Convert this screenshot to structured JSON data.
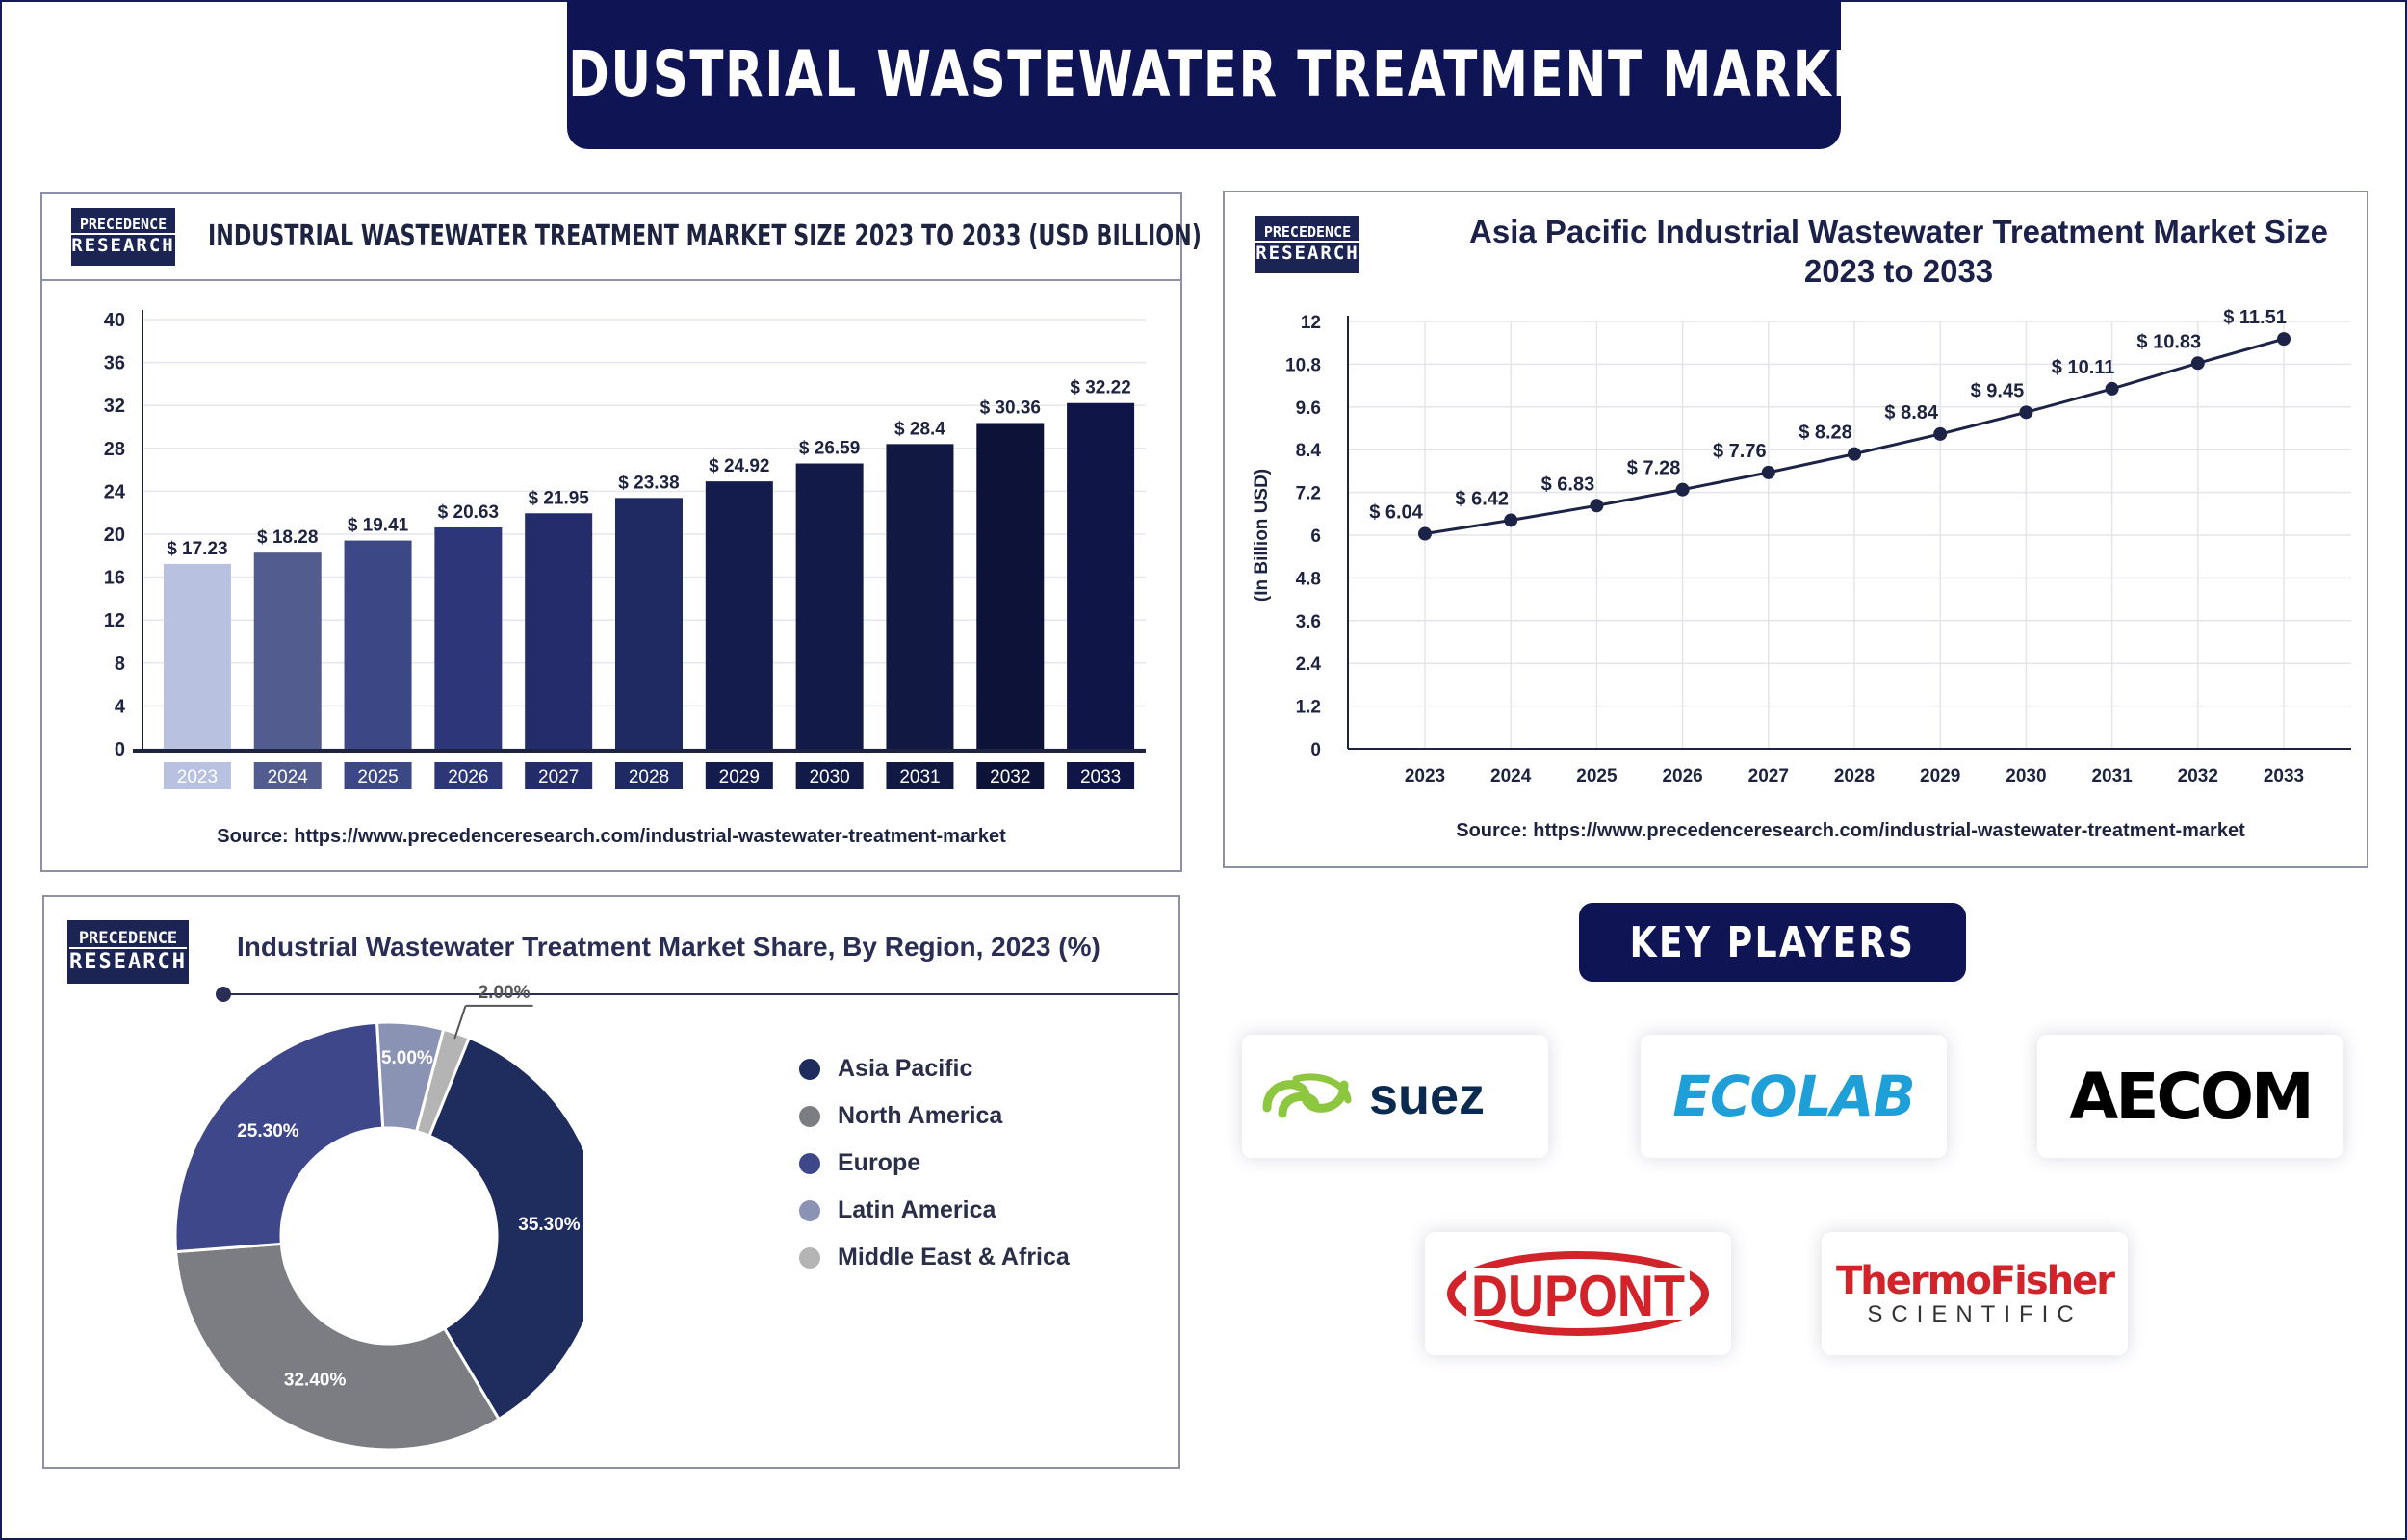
{
  "main_title": "INDUSTRIAL WASTEWATER TREATMENT MARKET",
  "logo": {
    "line1": "PRECEDENCE",
    "line2": "RESEARCH"
  },
  "panels": {
    "bar": {
      "title": "INDUSTRIAL WASTEWATER TREATMENT MARKET SIZE 2023 TO 2033 (USD BILLION)",
      "source": "Source: https://www.precedenceresearch.com/industrial-wastewater-treatment-market"
    },
    "line": {
      "title_line1": "Asia Pacific Industrial Wastewater Treatment Market Size",
      "title_line2": "2023 to 2033",
      "source": "Source: https://www.precedenceresearch.com/industrial-wastewater-treatment-market"
    },
    "donut": {
      "title": "Industrial Wastewater Treatment Market Share, By Region, 2023 (%)"
    }
  },
  "chart_data": [
    {
      "type": "bar",
      "title": "INDUSTRIAL WASTEWATER TREATMENT MARKET SIZE 2023 TO 2033 (USD BILLION)",
      "categories": [
        "2023",
        "2024",
        "2025",
        "2026",
        "2027",
        "2028",
        "2029",
        "2030",
        "2031",
        "2032",
        "2033"
      ],
      "values": [
        17.23,
        18.28,
        19.41,
        20.63,
        21.95,
        23.38,
        24.92,
        26.59,
        28.4,
        30.36,
        32.22
      ],
      "value_labels": [
        "$ 17.23",
        "$ 18.28",
        "$ 19.41",
        "$ 20.63",
        "$ 21.95",
        "$ 23.38",
        "$ 24.92",
        "$ 26.59",
        "$ 28.4",
        "$ 30.36",
        "$ 32.22"
      ],
      "colors": [
        "#b9c1e0",
        "#525c8e",
        "#3c4785",
        "#2c3678",
        "#242c6c",
        "#1f2a63",
        "#141c4e",
        "#121a48",
        "#111842",
        "#0d1338",
        "#0f1546"
      ],
      "yticks": [
        0,
        4,
        8,
        12,
        16,
        20,
        24,
        28,
        32,
        36,
        40
      ],
      "ylim": [
        0,
        40
      ],
      "xlabel": "",
      "ylabel": "",
      "grid": true
    },
    {
      "type": "line",
      "title": "Asia Pacific Industrial Wastewater Treatment Market Size 2023 to 2033",
      "x": [
        "2023",
        "2024",
        "2025",
        "2026",
        "2027",
        "2028",
        "2029",
        "2030",
        "2031",
        "2032",
        "2033"
      ],
      "values": [
        6.04,
        6.42,
        6.83,
        7.28,
        7.76,
        8.28,
        8.84,
        9.45,
        10.11,
        10.83,
        11.51
      ],
      "value_labels": [
        "$ 6.04",
        "$ 6.42",
        "$ 6.83",
        "$ 7.28",
        "$ 7.76",
        "$ 8.28",
        "$ 8.84",
        "$ 9.45",
        "$ 10.11",
        "$ 10.83",
        "$ 11.51"
      ],
      "yticks": [
        "0",
        "1.2",
        "2.4",
        "3.6",
        "4.8",
        "6",
        "7.2",
        "8.4",
        "9.6",
        "10.8",
        "12"
      ],
      "ylim": [
        0,
        12
      ],
      "ylabel": "(In Billion USD)",
      "xlabel": "",
      "grid": true,
      "color": "#1d2347"
    },
    {
      "type": "pie",
      "title": "Industrial Wastewater Treatment Market Share, By Region, 2023 (%)",
      "labels": [
        "Asia Pacific",
        "North America",
        "Europe",
        "Latin America",
        "Middle East & Africa"
      ],
      "values": [
        35.3,
        32.4,
        25.3,
        5.0,
        2.0
      ],
      "value_labels": [
        "35.30%",
        "32.40%",
        "25.30%",
        "5.00%",
        "2.00%"
      ],
      "colors": [
        "#1f2c5e",
        "#7b7d82",
        "#3f478b",
        "#8b93b5",
        "#b4b4b4"
      ],
      "donut": true,
      "legend_position": "right"
    }
  ],
  "key_players": {
    "title": "KEY PLAYERS",
    "logos": [
      {
        "name": "suez",
        "text": "suez",
        "color": "#0a2a4f",
        "accent": "#8dc63f"
      },
      {
        "name": "ecolab",
        "text": "ECOLAB",
        "color": "#1e9fd8"
      },
      {
        "name": "aecom",
        "text": "AECOM",
        "color": "#000000"
      },
      {
        "name": "dupont",
        "text": "DUPONT",
        "color": "#d2232a"
      },
      {
        "name": "thermofisher",
        "line1": "ThermoFisher",
        "line2": "SCIENTIFIC",
        "color": "#d2232a",
        "color2": "#333333"
      }
    ]
  }
}
